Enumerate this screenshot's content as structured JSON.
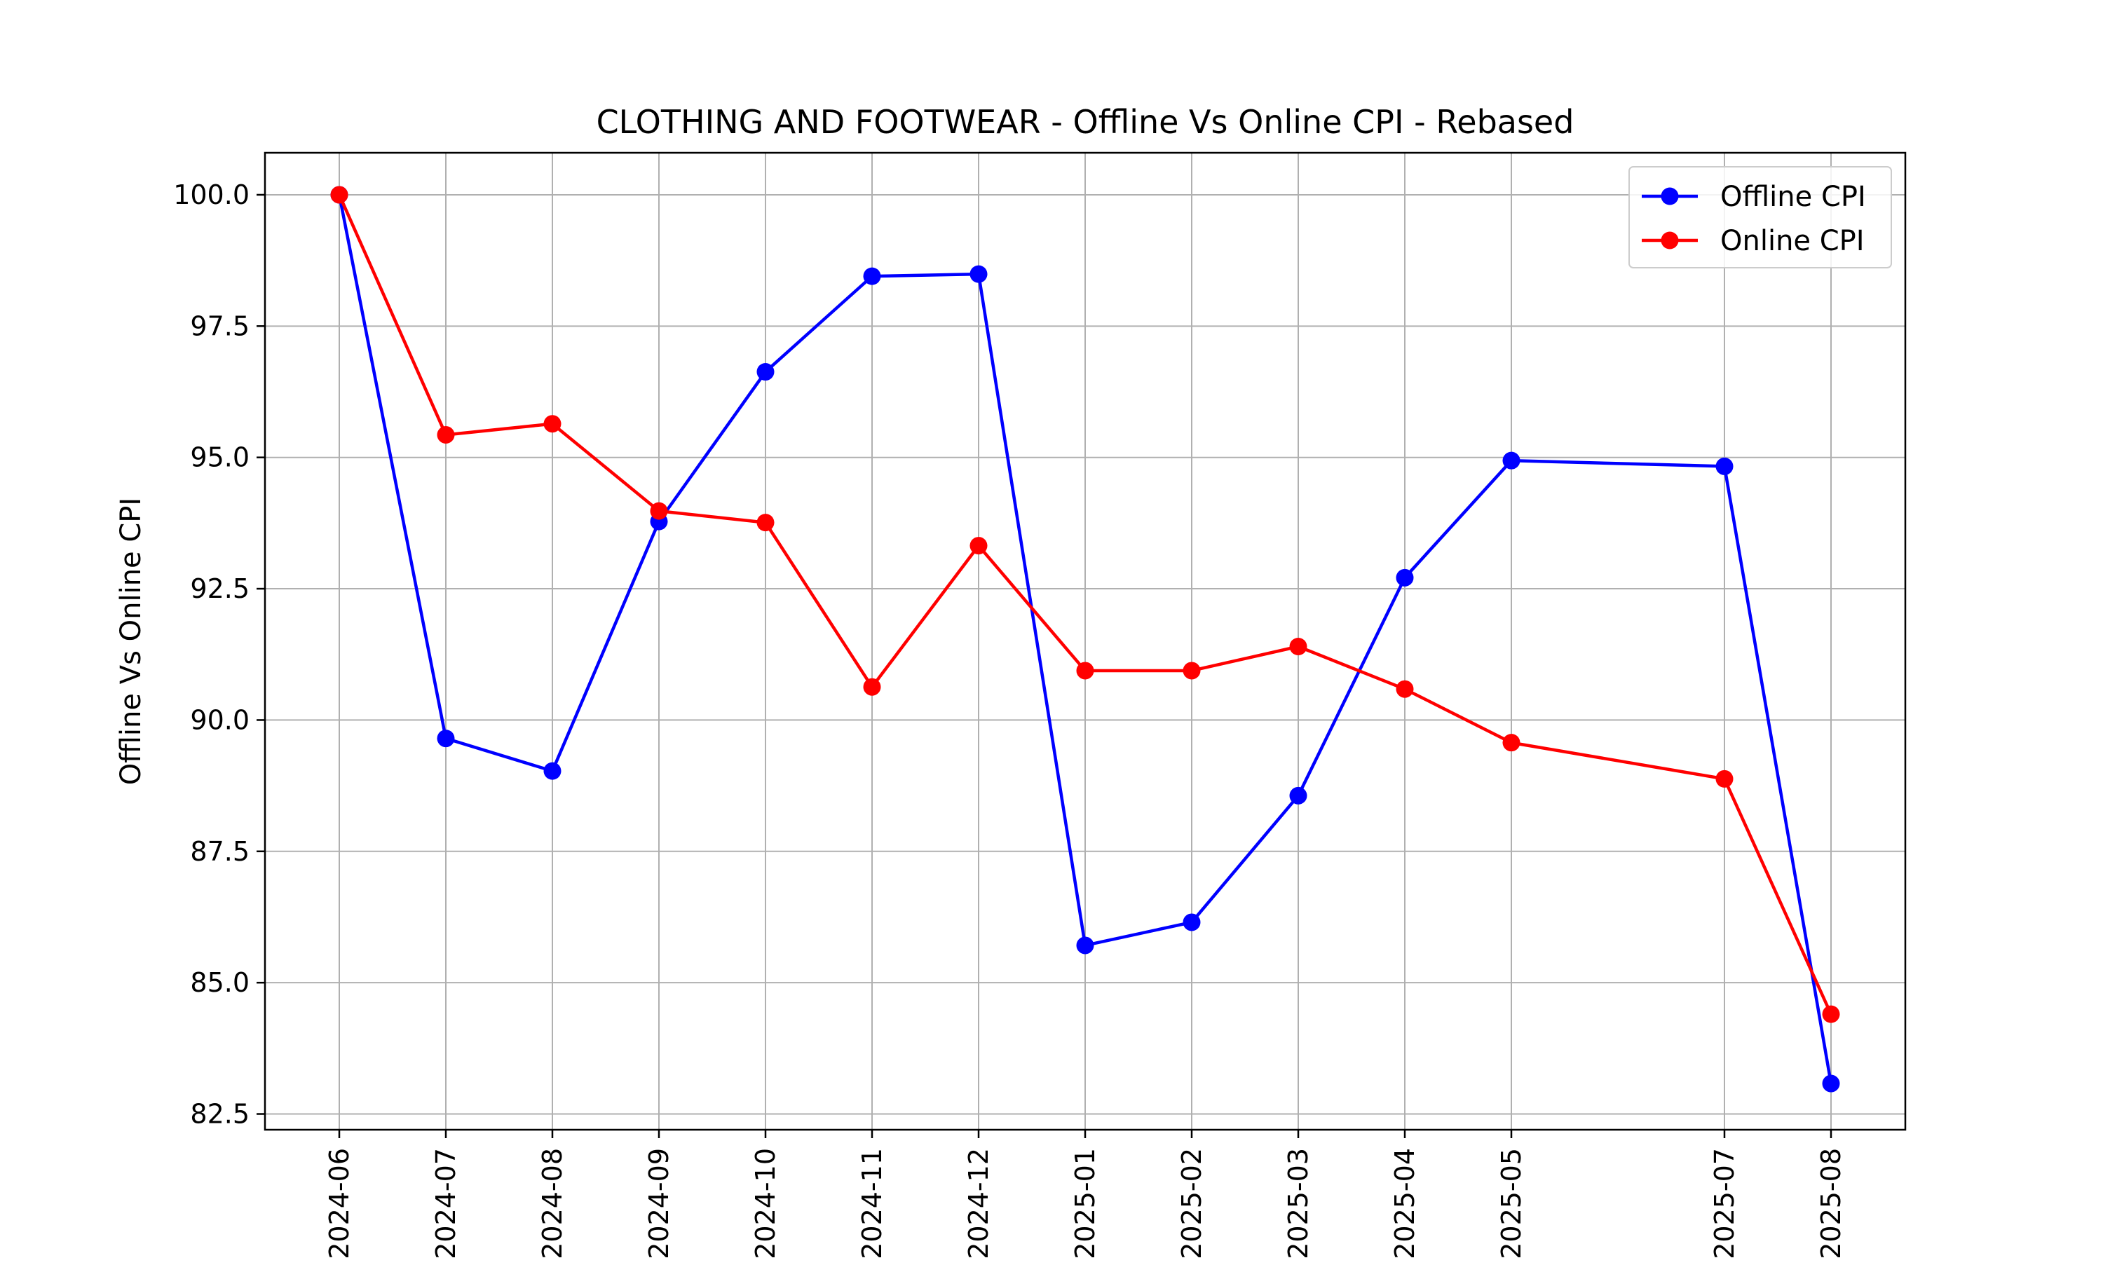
{
  "chart_data": {
    "type": "line",
    "title": "CLOTHING AND FOOTWEAR - Offline Vs Online CPI - Rebased",
    "xlabel": "",
    "ylabel": "Offline Vs Online CPI",
    "x": [
      "2024-06",
      "2024-07",
      "2024-08",
      "2024-09",
      "2024-10",
      "2024-11",
      "2024-12",
      "2025-01",
      "2025-02",
      "2025-03",
      "2025-04",
      "2025-05",
      "2025-07",
      "2025-08"
    ],
    "ylim": [
      82.2,
      100.8
    ],
    "yticks": [
      82.5,
      85.0,
      87.5,
      90.0,
      92.5,
      95.0,
      97.5,
      100.0
    ],
    "grid": true,
    "legend_position": "top-right",
    "series": [
      {
        "name": "Offline CPI",
        "color": "#0000ff",
        "values": [
          100.0,
          89.65,
          89.03,
          93.78,
          96.63,
          98.45,
          98.49,
          85.71,
          86.15,
          88.56,
          92.71,
          94.94,
          94.83,
          83.08
        ]
      },
      {
        "name": "Online CPI",
        "color": "#ff0000",
        "values": [
          100.0,
          95.43,
          95.64,
          93.98,
          93.76,
          90.63,
          93.32,
          90.94,
          90.94,
          91.4,
          90.59,
          89.57,
          88.88,
          84.4
        ]
      }
    ]
  }
}
